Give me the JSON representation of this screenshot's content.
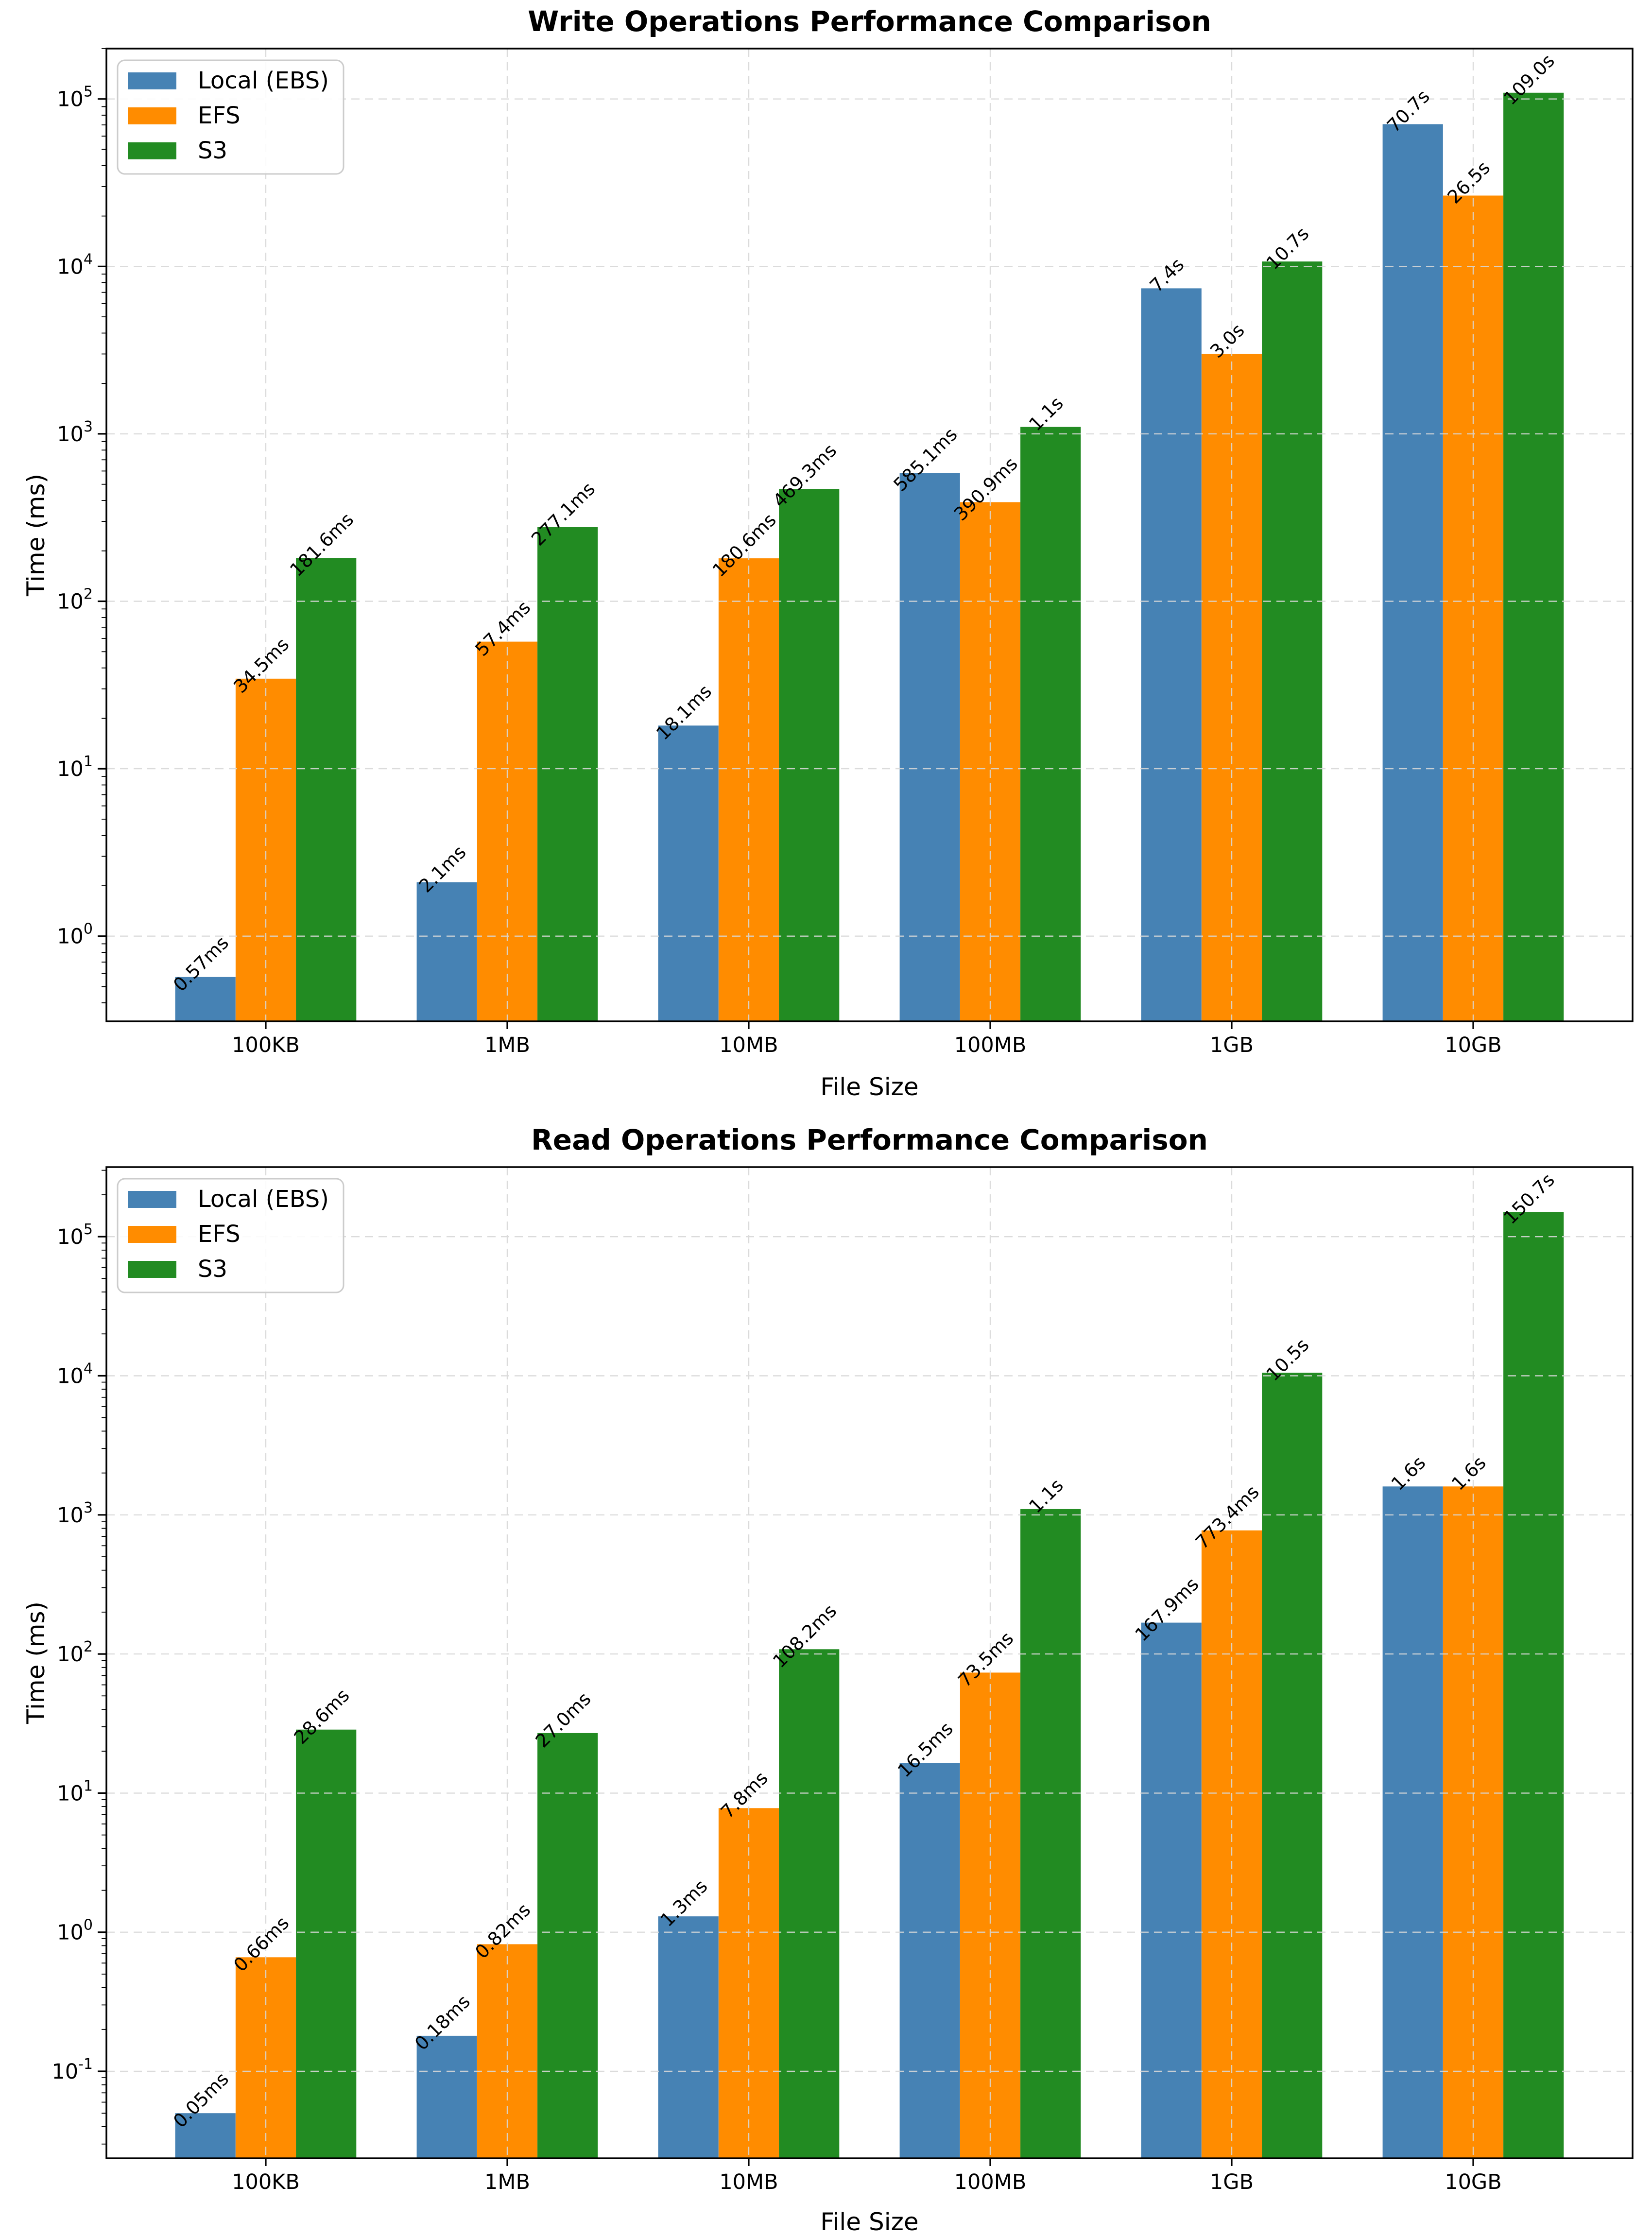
{
  "page": {
    "background": "#ffffff"
  },
  "chart_data": [
    {
      "type": "bar",
      "title": "Write Operations Performance Comparison",
      "xlabel": "File Size",
      "ylabel": "Time (ms)",
      "yscale": "log",
      "grid": true,
      "legend_position": "upper left",
      "categories": [
        "100KB",
        "1MB",
        "10MB",
        "100MB",
        "1GB",
        "10GB"
      ],
      "ylim_ms": [
        0.31,
        200000
      ],
      "yticks": [
        {
          "exp": 0,
          "label": "10⁰"
        },
        {
          "exp": 1,
          "label": "10¹"
        },
        {
          "exp": 2,
          "label": "10²"
        },
        {
          "exp": 3,
          "label": "10³"
        },
        {
          "exp": 4,
          "label": "10⁴"
        },
        {
          "exp": 5,
          "label": "10⁵"
        }
      ],
      "series": [
        {
          "name": "Local (EBS)",
          "color": "#4682B4",
          "values_ms": [
            0.57,
            2.1,
            18.1,
            585.1,
            7400,
            70700
          ],
          "value_labels": [
            "0.57ms",
            "2.1ms",
            "18.1ms",
            "585.1ms",
            "7.4s",
            "70.7s"
          ]
        },
        {
          "name": "EFS",
          "color": "#FF8C00",
          "values_ms": [
            34.5,
            57.4,
            180.6,
            390.9,
            3000,
            26500
          ],
          "value_labels": [
            "34.5ms",
            "57.4ms",
            "180.6ms",
            "390.9ms",
            "3.0s",
            "26.5s"
          ]
        },
        {
          "name": "S3",
          "color": "#228B22",
          "values_ms": [
            181.6,
            277.1,
            469.3,
            1100,
            10700,
            109000
          ],
          "value_labels": [
            "181.6ms",
            "277.1ms",
            "469.3ms",
            "1.1s",
            "10.7s",
            "109.0s"
          ]
        }
      ]
    },
    {
      "type": "bar",
      "title": "Read Operations Performance Comparison",
      "xlabel": "File Size",
      "ylabel": "Time (ms)",
      "yscale": "log",
      "grid": true,
      "legend_position": "upper left",
      "categories": [
        "100KB",
        "1MB",
        "10MB",
        "100MB",
        "1GB",
        "10GB"
      ],
      "ylim_ms": [
        0.0237,
        316228
      ],
      "yticks": [
        {
          "exp": -1,
          "label": "10⁻¹"
        },
        {
          "exp": 0,
          "label": "10⁰"
        },
        {
          "exp": 1,
          "label": "10¹"
        },
        {
          "exp": 2,
          "label": "10²"
        },
        {
          "exp": 3,
          "label": "10³"
        },
        {
          "exp": 4,
          "label": "10⁴"
        },
        {
          "exp": 5,
          "label": "10⁵"
        }
      ],
      "series": [
        {
          "name": "Local (EBS)",
          "color": "#4682B4",
          "values_ms": [
            0.05,
            0.18,
            1.3,
            16.5,
            167.9,
            1600
          ],
          "value_labels": [
            "0.05ms",
            "0.18ms",
            "1.3ms",
            "16.5ms",
            "167.9ms",
            "1.6s"
          ]
        },
        {
          "name": "EFS",
          "color": "#FF8C00",
          "values_ms": [
            0.66,
            0.82,
            7.8,
            73.5,
            773.4,
            1600
          ],
          "value_labels": [
            "0.66ms",
            "0.82ms",
            "7.8ms",
            "73.5ms",
            "773.4ms",
            "1.6s"
          ]
        },
        {
          "name": "S3",
          "color": "#228B22",
          "values_ms": [
            28.6,
            27.0,
            108.2,
            1100,
            10500,
            150700
          ],
          "value_labels": [
            "28.6ms",
            "27.0ms",
            "108.2ms",
            "1.1s",
            "10.5s",
            "150.7s"
          ]
        }
      ]
    }
  ],
  "style": {
    "grid_color": "#d8d8d8",
    "spine_color": "#000000",
    "legend_border_color": "#cccccc",
    "legend_background": "#ffffff",
    "text_color": "#000000"
  }
}
